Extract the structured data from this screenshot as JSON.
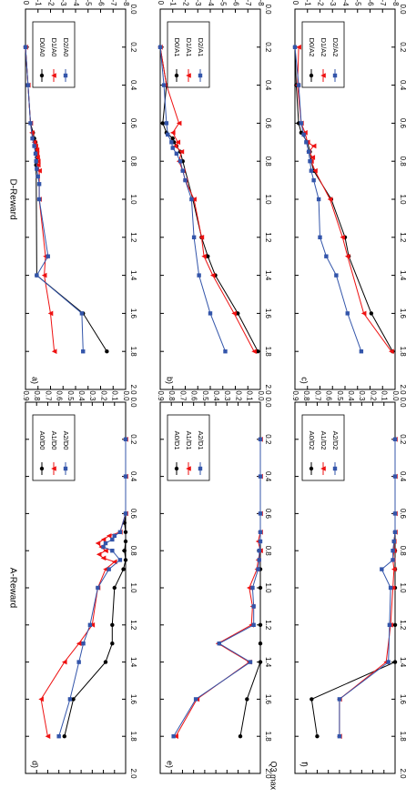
{
  "figure": {
    "xlabel_bottom": "Q3,max"
  },
  "colors": {
    "series0": "#000000",
    "series1": "#ee1111",
    "series2": "#3355aa"
  },
  "chart_data": [
    {
      "panel": "a",
      "label": "a)",
      "type": "line",
      "ylabel": "D-Reward",
      "xlim": [
        0,
        2.0
      ],
      "ylim": [
        -8,
        0
      ],
      "y_inverted": true,
      "x_ticks": [
        0,
        0.2,
        0.4,
        0.6,
        0.8,
        1.0,
        1.2,
        1.4,
        1.6,
        1.8,
        2.0
      ],
      "y_ticks": [
        0,
        -1,
        -2,
        -3,
        -4,
        -5,
        -6,
        -7,
        -8
      ],
      "legend_position": "upper-left (rotated view)",
      "series": [
        {
          "name": "D0/A0",
          "marker": "circle",
          "x": [
            0.2,
            0.4,
            0.6,
            0.65,
            0.68,
            0.7,
            0.72,
            0.74,
            0.76,
            0.78,
            0.8,
            0.82,
            1.4,
            1.6,
            1.8
          ],
          "y": [
            0,
            -0.2,
            -0.4,
            -0.6,
            -0.7,
            -0.8,
            -0.85,
            -0.9,
            -0.9,
            -0.9,
            -0.9,
            -0.85,
            -0.9,
            -4.6,
            -6.5
          ]
        },
        {
          "name": "D1/A0",
          "marker": "triangle",
          "x": [
            0.2,
            0.4,
            0.6,
            0.65,
            0.7,
            0.72,
            0.74,
            0.76,
            0.78,
            0.8,
            0.82,
            0.85,
            1.0,
            1.3,
            1.4,
            1.6,
            1.8
          ],
          "y": [
            0,
            -0.2,
            -0.4,
            -0.5,
            -0.7,
            -0.8,
            -0.9,
            -0.9,
            -0.95,
            -1.0,
            -1.0,
            -1.1,
            -1.1,
            -1.6,
            -1.5,
            -2.0,
            -2.3
          ]
        },
        {
          "name": "D2/A0",
          "marker": "square",
          "x": [
            0.2,
            0.4,
            0.6,
            0.68,
            0.72,
            0.76,
            0.8,
            0.84,
            0.88,
            0.92,
            1.0,
            1.3,
            1.4,
            1.6,
            1.8
          ],
          "y": [
            0,
            -0.2,
            -0.4,
            -0.55,
            -0.7,
            -0.8,
            -0.85,
            -0.9,
            -1.0,
            -1.1,
            -1.1,
            -1.8,
            -0.9,
            -4.5,
            -4.6
          ]
        }
      ]
    },
    {
      "panel": "b",
      "label": "b)",
      "type": "line",
      "ylabel": "",
      "xlim": [
        0,
        2.0
      ],
      "ylim": [
        -8,
        0
      ],
      "y_inverted": true,
      "x_ticks": [
        0,
        0.2,
        0.4,
        0.6,
        0.8,
        1.0,
        1.2,
        1.4,
        1.6,
        1.8,
        2.0
      ],
      "y_ticks": [
        0,
        -1,
        -2,
        -3,
        -4,
        -5,
        -6,
        -7,
        -8
      ],
      "legend_position": "upper-left (rotated view)",
      "series": [
        {
          "name": "D0/A1",
          "marker": "circle",
          "x": [
            0.2,
            0.4,
            0.6,
            0.65,
            0.68,
            0.7,
            0.72,
            0.75,
            0.8,
            1.0,
            1.2,
            1.3,
            1.4,
            1.6,
            1.8
          ],
          "y": [
            0,
            -0.5,
            -0.2,
            -0.5,
            -1.0,
            -1.1,
            -1.3,
            -1.6,
            -1.8,
            -2.6,
            -3.3,
            -3.8,
            -4.4,
            -6.2,
            -7.8
          ]
        },
        {
          "name": "D1/A1",
          "marker": "triangle",
          "x": [
            0.2,
            0.4,
            0.6,
            0.65,
            0.7,
            0.72,
            0.75,
            0.8,
            0.85,
            0.9,
            1.0,
            1.2,
            1.3,
            1.4,
            1.6,
            1.8
          ],
          "y": [
            0,
            -0.5,
            -1.5,
            -1.0,
            -1.4,
            -1.2,
            -1.7,
            -1.5,
            -1.8,
            -2.0,
            -2.7,
            -3.3,
            -3.5,
            -4.2,
            -5.9,
            -7.5
          ]
        },
        {
          "name": "D2/A1",
          "marker": "square",
          "x": [
            0.2,
            0.4,
            0.6,
            0.66,
            0.7,
            0.73,
            0.76,
            0.8,
            0.85,
            0.9,
            1.0,
            1.2,
            1.4,
            1.6,
            1.8
          ],
          "y": [
            0,
            -0.3,
            -0.5,
            -0.6,
            -0.9,
            -1.0,
            -1.3,
            -1.6,
            -1.8,
            -2.0,
            -2.5,
            -2.7,
            -3.1,
            -4.0,
            -5.2
          ]
        }
      ]
    },
    {
      "panel": "c",
      "label": "c)",
      "type": "line",
      "ylabel": "",
      "xlim": [
        0,
        2.0
      ],
      "ylim": [
        -8,
        0
      ],
      "y_inverted": true,
      "x_ticks": [
        0,
        0.2,
        0.4,
        0.6,
        0.8,
        1.0,
        1.2,
        1.4,
        1.6,
        1.8,
        2.0
      ],
      "y_ticks": [
        0,
        -1,
        -2,
        -3,
        -4,
        -5,
        -6,
        -7,
        -8
      ],
      "legend_position": "upper-left (rotated view)",
      "series": [
        {
          "name": "D0/A2",
          "marker": "circle",
          "x": [
            0.2,
            0.4,
            0.6,
            0.65,
            0.7,
            0.75,
            0.8,
            0.85,
            1.0,
            1.2,
            1.3,
            1.6,
            1.8
          ],
          "y": [
            0,
            -0.1,
            -0.3,
            -0.5,
            -1.0,
            -1.2,
            -1.3,
            -1.5,
            -2.9,
            -4.0,
            -4.3,
            -6.1,
            -7.8
          ]
        },
        {
          "name": "D1/A2",
          "marker": "triangle",
          "x": [
            0.2,
            0.4,
            0.6,
            0.65,
            0.7,
            0.72,
            0.75,
            0.78,
            0.8,
            0.85,
            1.0,
            1.2,
            1.3,
            1.6,
            1.8
          ],
          "y": [
            -0.3,
            -0.2,
            -0.5,
            -0.8,
            -1.0,
            -1.5,
            -1.1,
            -1.4,
            -1.3,
            -1.6,
            -2.8,
            -3.8,
            -4.2,
            -5.5,
            -7.7
          ]
        },
        {
          "name": "D2/A2",
          "marker": "square",
          "x": [
            0.2,
            0.4,
            0.6,
            0.66,
            0.7,
            0.75,
            0.8,
            0.85,
            0.9,
            1.0,
            1.2,
            1.3,
            1.4,
            1.6,
            1.8
          ],
          "y": [
            0,
            -0.3,
            -0.5,
            -0.7,
            -0.9,
            -1.1,
            -1.2,
            -1.3,
            -1.5,
            -1.9,
            -2.0,
            -2.5,
            -3.3,
            -4.2,
            -5.3
          ]
        }
      ]
    },
    {
      "panel": "d",
      "label": "d)",
      "type": "line",
      "ylabel": "A-Reward",
      "xlim": [
        0,
        2.0
      ],
      "ylim": [
        0,
        0.9
      ],
      "y_inverted": false,
      "x_ticks": [
        0,
        0.2,
        0.4,
        0.6,
        0.8,
        1.0,
        1.2,
        1.4,
        1.6,
        1.8,
        2.0
      ],
      "y_ticks": [
        0.0,
        0.1,
        0.2,
        0.3,
        0.4,
        0.5,
        0.6,
        0.7,
        0.8,
        0.9
      ],
      "legend_position": "upper-left (rotated view)",
      "series": [
        {
          "name": "A0/D0",
          "marker": "circle",
          "x": [
            0.2,
            0.4,
            0.6,
            0.65,
            0.7,
            0.75,
            0.8,
            0.85,
            0.9,
            1.0,
            1.2,
            1.3,
            1.4,
            1.6,
            1.8
          ],
          "y": [
            0,
            0,
            0,
            0.01,
            0,
            0,
            0.01,
            0,
            0.02,
            0.1,
            0.12,
            0.12,
            0.18,
            0.47,
            0.55
          ]
        },
        {
          "name": "A1/D0",
          "marker": "triangle",
          "x": [
            0.2,
            0.4,
            0.6,
            0.7,
            0.72,
            0.74,
            0.76,
            0.78,
            0.8,
            0.82,
            0.84,
            0.86,
            0.9,
            1.0,
            1.2,
            1.3,
            1.4,
            1.6,
            1.8
          ],
          "y": [
            0,
            0,
            0,
            0.05,
            0.15,
            0.2,
            0.25,
            0.22,
            0.18,
            0.24,
            0.2,
            0.1,
            0.18,
            0.25,
            0.3,
            0.42,
            0.55,
            0.76,
            0.7
          ]
        },
        {
          "name": "A2/D0",
          "marker": "square",
          "x": [
            0.2,
            0.4,
            0.6,
            0.7,
            0.72,
            0.74,
            0.76,
            0.78,
            0.8,
            0.85,
            0.9,
            1.0,
            1.2,
            1.3,
            1.4,
            1.6,
            1.8
          ],
          "y": [
            0,
            0,
            0,
            0.05,
            0.1,
            0.12,
            0.18,
            0.2,
            0.12,
            0.05,
            0.15,
            0.25,
            0.32,
            0.38,
            0.42,
            0.5,
            0.6
          ]
        }
      ]
    },
    {
      "panel": "e",
      "label": "e)",
      "type": "line",
      "ylabel": "",
      "xlim": [
        0,
        2.0
      ],
      "ylim": [
        0,
        0.9
      ],
      "y_inverted": false,
      "x_ticks": [
        0,
        0.2,
        0.4,
        0.6,
        0.8,
        1.0,
        1.2,
        1.4,
        1.6,
        1.8,
        2.0
      ],
      "y_ticks": [
        0.0,
        0.1,
        0.2,
        0.3,
        0.4,
        0.5,
        0.6,
        0.7,
        0.8,
        0.9
      ],
      "legend_position": "upper-left (rotated view)",
      "series": [
        {
          "name": "A0/D1",
          "marker": "circle",
          "x": [
            0.2,
            0.4,
            0.6,
            0.7,
            0.8,
            0.9,
            1.0,
            1.2,
            1.3,
            1.4,
            1.6,
            1.8
          ],
          "y": [
            0,
            0,
            0,
            0,
            0,
            0,
            0,
            0,
            0,
            0,
            0.12,
            0.18
          ]
        },
        {
          "name": "A1/D1",
          "marker": "triangle",
          "x": [
            0.2,
            0.4,
            0.6,
            0.7,
            0.75,
            0.8,
            0.85,
            0.9,
            1.0,
            1.1,
            1.2,
            1.3,
            1.4,
            1.6,
            1.8
          ],
          "y": [
            0,
            0,
            0,
            0,
            0.02,
            0,
            0.02,
            0.03,
            0.1,
            0.07,
            0.08,
            0.38,
            0.1,
            0.57,
            0.76
          ]
        },
        {
          "name": "A2/D1",
          "marker": "square",
          "x": [
            0.2,
            0.4,
            0.6,
            0.7,
            0.75,
            0.8,
            0.85,
            0.9,
            1.0,
            1.1,
            1.2,
            1.3,
            1.4,
            1.6,
            1.8
          ],
          "y": [
            0,
            0,
            0,
            0,
            0,
            0.01,
            0.01,
            0.02,
            0.07,
            0.06,
            0.06,
            0.37,
            0.09,
            0.58,
            0.78
          ]
        }
      ]
    },
    {
      "panel": "f",
      "label": "f)",
      "type": "line",
      "ylabel": "",
      "xlim": [
        0,
        2.0
      ],
      "ylim": [
        0,
        0.9
      ],
      "y_inverted": false,
      "x_ticks": [
        0,
        0.2,
        0.4,
        0.6,
        0.8,
        1.0,
        1.2,
        1.4,
        1.6,
        1.8,
        2.0
      ],
      "y_ticks": [
        0.0,
        0.1,
        0.2,
        0.3,
        0.4,
        0.5,
        0.6,
        0.7,
        0.8,
        0.9
      ],
      "legend_position": "upper-left (rotated view)",
      "series": [
        {
          "name": "A0/D2",
          "marker": "circle",
          "x": [
            0.2,
            0.4,
            0.6,
            0.7,
            0.8,
            0.9,
            1.0,
            1.2,
            1.4,
            1.6,
            1.8
          ],
          "y": [
            0,
            0,
            0,
            0,
            0,
            0,
            0,
            0,
            0,
            0.75,
            0.7
          ]
        },
        {
          "name": "A1/D2",
          "marker": "triangle",
          "x": [
            0.2,
            0.4,
            0.6,
            0.7,
            0.75,
            0.8,
            0.85,
            0.9,
            1.0,
            1.2,
            1.4,
            1.6,
            1.8
          ],
          "y": [
            0,
            0,
            0,
            0,
            0.01,
            0.01,
            0.02,
            0.01,
            0.02,
            0.04,
            0.08,
            0.5,
            0.5
          ]
        },
        {
          "name": "A2/D2",
          "marker": "square",
          "x": [
            0.2,
            0.4,
            0.6,
            0.7,
            0.75,
            0.8,
            0.85,
            0.9,
            1.0,
            1.2,
            1.4,
            1.6,
            1.8
          ],
          "y": [
            0,
            0,
            0,
            0,
            0.01,
            0.02,
            0.02,
            0.12,
            0.04,
            0.05,
            0.06,
            0.5,
            0.5
          ]
        }
      ]
    }
  ]
}
